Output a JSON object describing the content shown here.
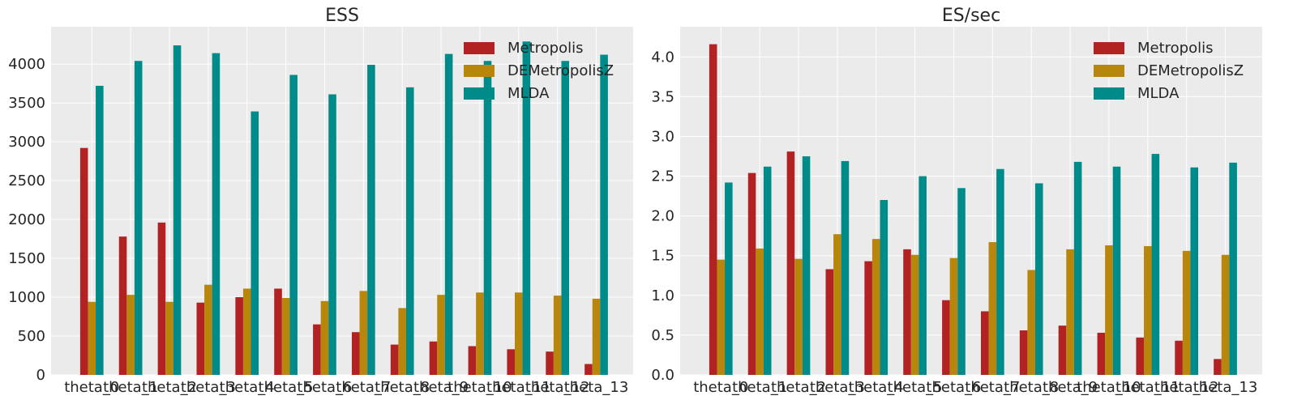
{
  "chart_data": [
    {
      "type": "bar",
      "title": "ESS",
      "xlabel": "",
      "ylabel": "",
      "ylim": [
        0,
        4480
      ],
      "yticks": [
        0,
        500,
        1000,
        1500,
        2000,
        2500,
        3000,
        3500,
        4000
      ],
      "categories": [
        "theta_0",
        "theta_1",
        "theta_2",
        "theta_3",
        "theta_4",
        "theta_5",
        "theta_6",
        "theta_7",
        "theta_8",
        "theta_9",
        "theta_10",
        "theta_11",
        "theta_12",
        "theta_13"
      ],
      "grid": true,
      "legend_position": "top-right",
      "series": [
        {
          "name": "Metropolis",
          "color": "#b22222",
          "values": [
            2920,
            1780,
            1960,
            930,
            1000,
            1110,
            650,
            550,
            390,
            430,
            370,
            330,
            300,
            140
          ]
        },
        {
          "name": "DEMetropolisZ",
          "color": "#b8860b",
          "values": [
            940,
            1030,
            940,
            1160,
            1110,
            990,
            950,
            1080,
            860,
            1030,
            1060,
            1060,
            1020,
            980
          ]
        },
        {
          "name": "MLDA",
          "color": "#008b8b",
          "values": [
            3720,
            4040,
            4240,
            4140,
            3390,
            3860,
            3610,
            3990,
            3700,
            4130,
            4040,
            4290,
            4040,
            4120
          ]
        }
      ]
    },
    {
      "type": "bar",
      "title": "ES/sec",
      "xlabel": "",
      "ylabel": "",
      "ylim": [
        0,
        4.38
      ],
      "yticks": [
        0.0,
        0.5,
        1.0,
        1.5,
        2.0,
        2.5,
        3.0,
        3.5,
        4.0
      ],
      "categories": [
        "theta_0",
        "theta_1",
        "theta_2",
        "theta_3",
        "theta_4",
        "theta_5",
        "theta_6",
        "theta_7",
        "theta_8",
        "theta_9",
        "theta_10",
        "theta_11",
        "theta_12",
        "theta_13"
      ],
      "grid": true,
      "legend_position": "top-right",
      "series": [
        {
          "name": "Metropolis",
          "color": "#b22222",
          "values": [
            4.16,
            2.54,
            2.81,
            1.33,
            1.43,
            1.58,
            0.94,
            0.8,
            0.56,
            0.62,
            0.53,
            0.47,
            0.43,
            0.2
          ]
        },
        {
          "name": "DEMetropolisZ",
          "color": "#b8860b",
          "values": [
            1.45,
            1.59,
            1.46,
            1.77,
            1.71,
            1.51,
            1.47,
            1.67,
            1.32,
            1.58,
            1.63,
            1.62,
            1.56,
            1.51
          ]
        },
        {
          "name": "MLDA",
          "color": "#008b8b",
          "values": [
            2.42,
            2.62,
            2.75,
            2.69,
            2.2,
            2.5,
            2.35,
            2.59,
            2.41,
            2.68,
            2.62,
            2.78,
            2.61,
            2.67
          ]
        }
      ]
    }
  ]
}
